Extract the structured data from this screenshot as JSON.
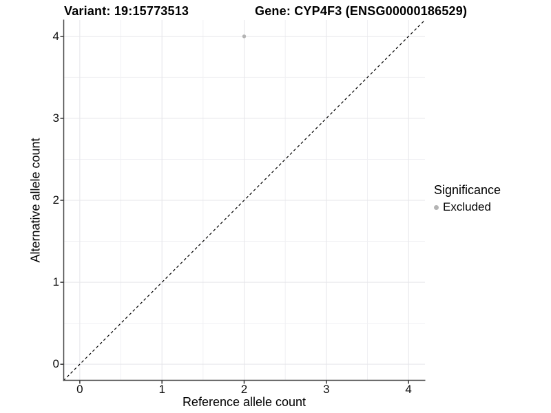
{
  "titles": {
    "variant": "Variant: 19:15773513",
    "gene": "Gene: CYP4F3 (ENSG00000186529)"
  },
  "legend": {
    "title": "Significance",
    "items": [
      {
        "label": "Excluded",
        "color": "#b4b4b4"
      }
    ]
  },
  "chart_data": {
    "type": "scatter",
    "xlabel": "Reference allele count",
    "ylabel": "Alternative allele count",
    "xlim": [
      -0.2,
      4.2
    ],
    "ylim": [
      -0.2,
      4.2
    ],
    "x_ticks": [
      0,
      1,
      2,
      3,
      4
    ],
    "y_ticks": [
      0,
      1,
      2,
      3,
      4
    ],
    "x_minor": [
      0.5,
      1.5,
      2.5,
      3.5
    ],
    "y_minor": [
      0.5,
      1.5,
      2.5,
      3.5
    ],
    "grid": "major+minor",
    "legend_position": "right",
    "identity_line": {
      "style": "dashed",
      "color": "#000000",
      "from": [
        -0.2,
        -0.2
      ],
      "to": [
        4.2,
        4.2
      ]
    },
    "series": [
      {
        "name": "Excluded",
        "color": "#b4b4b4",
        "points": [
          {
            "x": 2,
            "y": 4
          }
        ]
      }
    ]
  },
  "colors": {
    "grid_major": "#e5e5e9",
    "grid_minor": "#f0f0f3",
    "axis_line": "#454545",
    "tick_mark": "#333333",
    "background": "#ffffff",
    "excluded_gray": "#b4b4b4"
  }
}
